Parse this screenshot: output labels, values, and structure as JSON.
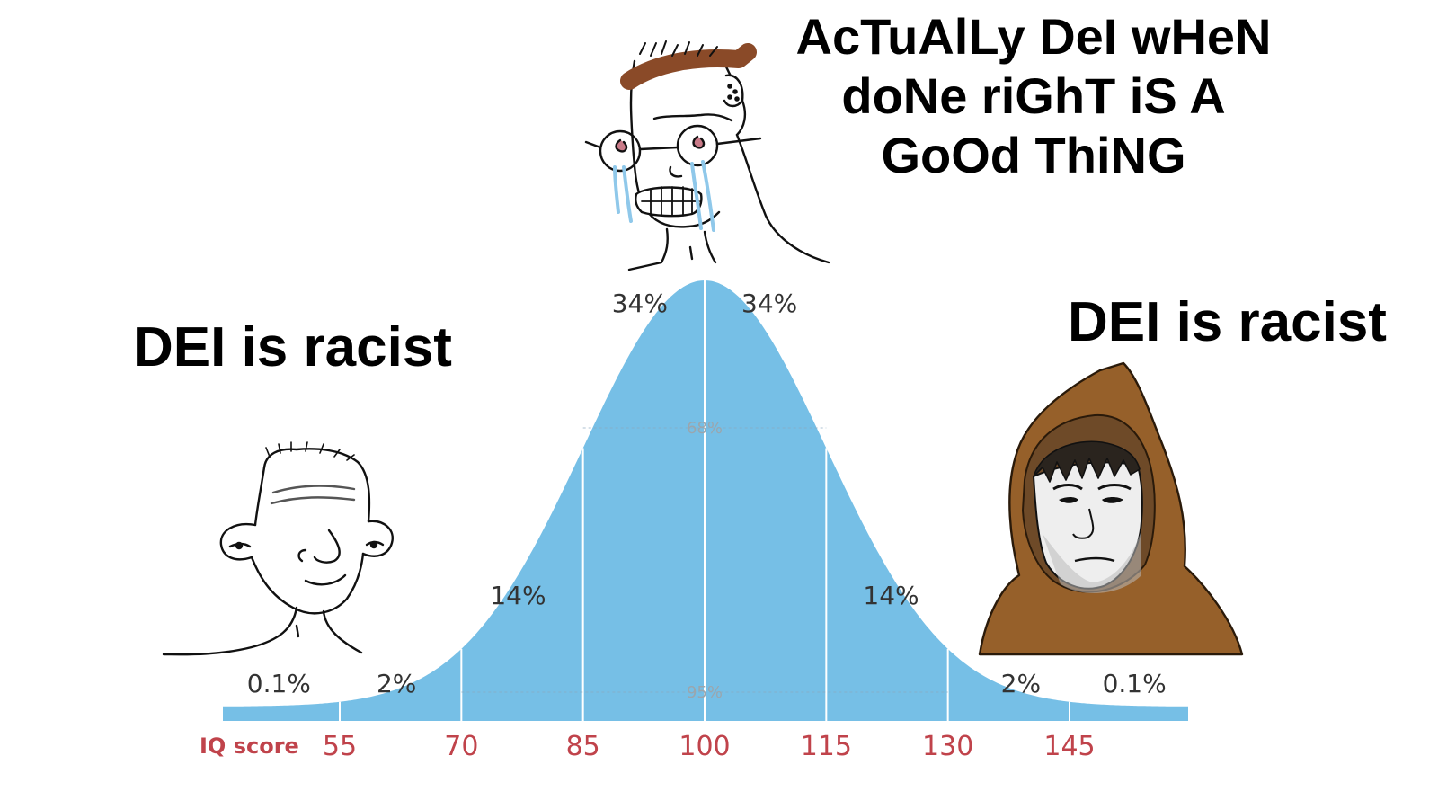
{
  "captions": {
    "top_lines": [
      "AcTuAlLy DeI wHeN",
      "doNe riGhT iS A",
      "GoOd ThiNG"
    ],
    "left": "DEI is racist",
    "right": "DEI is racist"
  },
  "chart_data": {
    "type": "area",
    "xlabel": "IQ score",
    "x_ticks": [
      55,
      70,
      85,
      100,
      115,
      130,
      145
    ],
    "mean": 100,
    "sd": 15,
    "xlim": [
      40,
      160
    ],
    "band_labels": [
      {
        "text": "0.1%",
        "x": 47.5,
        "row": "low"
      },
      {
        "text": "2%",
        "x": 62,
        "row": "low"
      },
      {
        "text": "14%",
        "x": 77,
        "row": "mid"
      },
      {
        "text": "34%",
        "x": 92,
        "row": "top"
      },
      {
        "text": "34%",
        "x": 108,
        "row": "top"
      },
      {
        "text": "14%",
        "x": 123,
        "row": "mid"
      },
      {
        "text": "2%",
        "x": 139,
        "row": "low"
      },
      {
        "text": "0.1%",
        "x": 153,
        "row": "low"
      }
    ],
    "inner_labels": [
      {
        "text": "68%",
        "from": 85,
        "to": 115
      },
      {
        "text": "95%",
        "from": 70,
        "to": 130
      }
    ],
    "colors": {
      "fill": "#76bfe6",
      "divider": "#ffffff",
      "axis_text": "#c0434b",
      "label": "#333333"
    }
  },
  "characters": [
    {
      "name": "wojak-crying-glasses",
      "position": "top-center"
    },
    {
      "name": "simpleton-wojak",
      "position": "left"
    },
    {
      "name": "hooded-wojak",
      "position": "right"
    }
  ]
}
